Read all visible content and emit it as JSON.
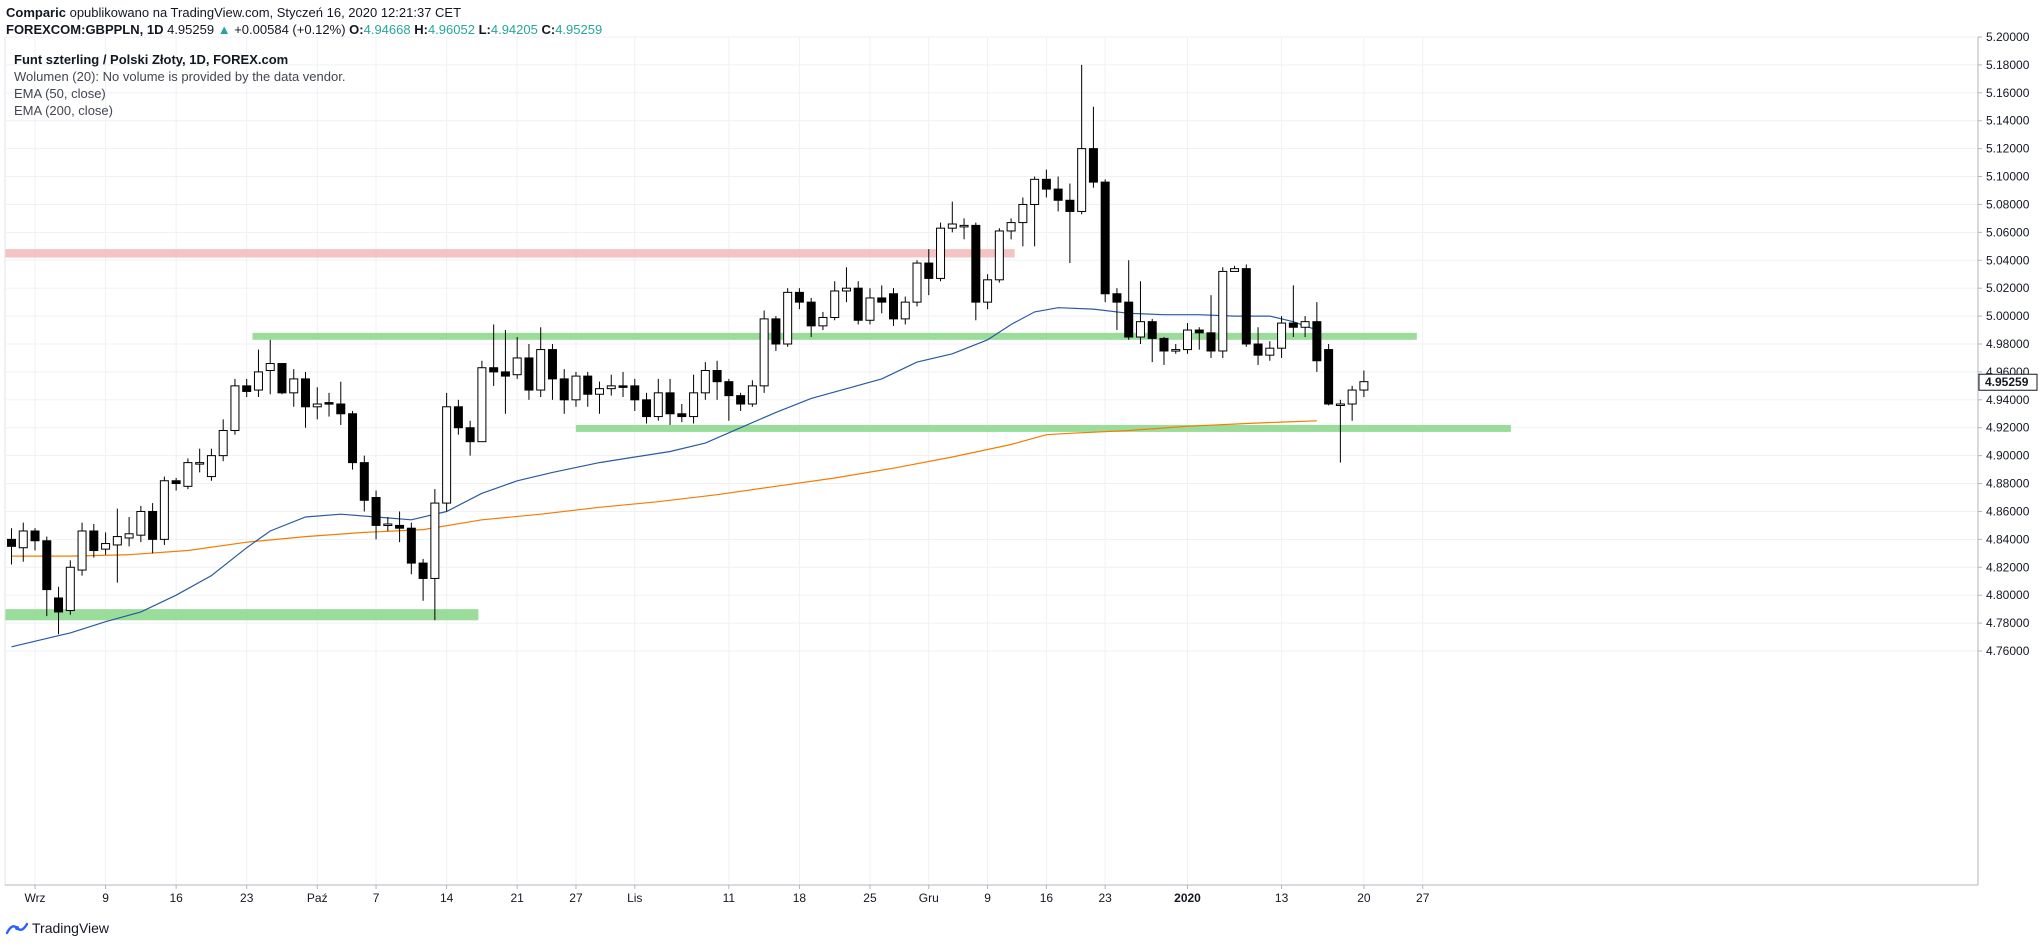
{
  "header": {
    "author": "Comparic",
    "published": "opublikowano na TradingView.com, Styczeń 16, 2020 12:21:37 CET",
    "symbol": "FOREXCOM:GBPPLN, 1D",
    "last": "4.95259",
    "change_arrow": "▲",
    "change": "+0.00584 (+0.12%)",
    "o_label": "O:",
    "o_value": "4.94668",
    "h_label": "H:",
    "h_value": "4.96052",
    "l_label": "L:",
    "l_value": "4.94205",
    "c_label": "C:",
    "c_value": "4.95259"
  },
  "legend": {
    "title": "Funt szterling / Polski Złoty, 1D, FOREX.com",
    "volume": "Wolumen (20): No volume is provided by the data vendor.",
    "ema50": "EMA (50, close)",
    "ema200": "EMA (200, close)"
  },
  "footer": {
    "brand": "TradingView"
  },
  "colors": {
    "ema50": "#2c5aa0",
    "ema200": "#f57c00",
    "resistance_zone": "#f4bcbc",
    "support_zone": "#8fd98f",
    "up_candle": "#ffffff",
    "down_candle": "#000000",
    "last_price_label": "#131722"
  },
  "chart_data": {
    "type": "candlestick",
    "title": "Funt szterling / Polski Złoty, 1D, FOREX.com",
    "ylim": [
      4.75,
      5.2
    ],
    "y_ticks": [
      4.76,
      4.78,
      4.8,
      4.82,
      4.84,
      4.86,
      4.88,
      4.9,
      4.92,
      4.94,
      4.96,
      4.98,
      5.0,
      5.02,
      5.04,
      5.06,
      5.08,
      5.1,
      5.12,
      5.14,
      5.16,
      5.18,
      5.2
    ],
    "x_ticks": [
      {
        "i": 2,
        "label": "Wrz"
      },
      {
        "i": 8,
        "label": "9"
      },
      {
        "i": 14,
        "label": "16"
      },
      {
        "i": 20,
        "label": "23"
      },
      {
        "i": 26,
        "label": "Paź"
      },
      {
        "i": 31,
        "label": "7"
      },
      {
        "i": 37,
        "label": "14"
      },
      {
        "i": 43,
        "label": "21"
      },
      {
        "i": 48,
        "label": "27"
      },
      {
        "i": 53,
        "label": "Lis"
      },
      {
        "i": 61,
        "label": "11"
      },
      {
        "i": 67,
        "label": "18"
      },
      {
        "i": 73,
        "label": "25"
      },
      {
        "i": 78,
        "label": "Gru"
      },
      {
        "i": 83,
        "label": "9"
      },
      {
        "i": 88,
        "label": "16"
      },
      {
        "i": 93,
        "label": "23"
      },
      {
        "i": 100,
        "label": "2020"
      },
      {
        "i": 108,
        "label": "13"
      },
      {
        "i": 115,
        "label": "20"
      },
      {
        "i": 120,
        "label": "27"
      }
    ],
    "last_price": 4.95259,
    "candles": [
      [
        4.84,
        4.835,
        4.848,
        4.822
      ],
      [
        4.834,
        4.846,
        4.852,
        4.824
      ],
      [
        4.846,
        4.839,
        4.848,
        4.832
      ],
      [
        4.839,
        4.804,
        4.842,
        4.785
      ],
      [
        4.798,
        4.788,
        4.806,
        4.772
      ],
      [
        4.789,
        4.82,
        4.825,
        4.786
      ],
      [
        4.818,
        4.846,
        4.852,
        4.814
      ],
      [
        4.846,
        4.832,
        4.851,
        4.827
      ],
      [
        4.833,
        4.837,
        4.845,
        4.829
      ],
      [
        4.836,
        4.842,
        4.862,
        4.809
      ],
      [
        4.841,
        4.844,
        4.856,
        4.835
      ],
      [
        4.843,
        4.86,
        4.864,
        4.838
      ],
      [
        4.86,
        4.84,
        4.866,
        4.83
      ],
      [
        4.84,
        4.882,
        4.885,
        4.836
      ],
      [
        4.882,
        4.88,
        4.884,
        4.875
      ],
      [
        4.878,
        4.895,
        4.898,
        4.876
      ],
      [
        4.895,
        4.895,
        4.905,
        4.888
      ],
      [
        4.885,
        4.9,
        4.905,
        4.882
      ],
      [
        4.9,
        4.918,
        4.926,
        4.896
      ],
      [
        4.918,
        4.95,
        4.955,
        4.915
      ],
      [
        4.95,
        4.946,
        4.955,
        4.942
      ],
      [
        4.947,
        4.96,
        4.976,
        4.942
      ],
      [
        4.961,
        4.966,
        4.983,
        4.944
      ],
      [
        4.966,
        4.945,
        4.966,
        4.944
      ],
      [
        4.945,
        4.955,
        4.962,
        4.935
      ],
      [
        4.955,
        4.935,
        4.96,
        4.92
      ],
      [
        4.935,
        4.937,
        4.949,
        4.926
      ],
      [
        4.938,
        4.937,
        4.945,
        4.928
      ],
      [
        4.937,
        4.93,
        4.953,
        4.922
      ],
      [
        4.93,
        4.895,
        4.932,
        4.89
      ],
      [
        4.895,
        4.868,
        4.9,
        4.86
      ],
      [
        4.87,
        4.85,
        4.875,
        4.84
      ],
      [
        4.85,
        4.851,
        4.856,
        4.846
      ],
      [
        4.85,
        4.848,
        4.86,
        4.838
      ],
      [
        4.848,
        4.823,
        4.852,
        4.815
      ],
      [
        4.823,
        4.812,
        4.826,
        4.796
      ],
      [
        4.812,
        4.866,
        4.876,
        4.782
      ],
      [
        4.866,
        4.935,
        4.945,
        4.86
      ],
      [
        4.935,
        4.92,
        4.94,
        4.915
      ],
      [
        4.92,
        4.91,
        4.925,
        4.9
      ],
      [
        4.91,
        4.963,
        4.968,
        4.91
      ],
      [
        4.963,
        4.96,
        4.994,
        4.95
      ],
      [
        4.96,
        4.957,
        4.99,
        4.93
      ],
      [
        4.958,
        4.97,
        4.985,
        4.955
      ],
      [
        4.97,
        4.947,
        4.98,
        4.94
      ],
      [
        4.947,
        4.976,
        4.992,
        4.942
      ],
      [
        4.976,
        4.955,
        4.98,
        4.94
      ],
      [
        4.955,
        4.94,
        4.962,
        4.93
      ],
      [
        4.94,
        4.957,
        4.96,
        4.935
      ],
      [
        4.957,
        4.944,
        4.96,
        4.935
      ],
      [
        4.944,
        4.948,
        4.953,
        4.93
      ],
      [
        4.948,
        4.95,
        4.958,
        4.943
      ],
      [
        4.95,
        4.949,
        4.96,
        4.942
      ],
      [
        4.95,
        4.94,
        4.955,
        4.932
      ],
      [
        4.94,
        4.928,
        4.945,
        4.923
      ],
      [
        4.928,
        4.945,
        4.955,
        4.925
      ],
      [
        4.945,
        4.93,
        4.955,
        4.922
      ],
      [
        4.93,
        4.928,
        4.937,
        4.924
      ],
      [
        4.928,
        4.945,
        4.958,
        4.923
      ],
      [
        4.945,
        4.961,
        4.967,
        4.94
      ],
      [
        4.961,
        4.953,
        4.968,
        4.94
      ],
      [
        4.953,
        4.943,
        4.955,
        4.925
      ],
      [
        4.943,
        4.937,
        4.945,
        4.932
      ],
      [
        4.937,
        4.95,
        4.954,
        4.935
      ],
      [
        4.95,
        4.998,
        5.004,
        4.945
      ],
      [
        4.998,
        4.98,
        5.0,
        4.975
      ],
      [
        4.98,
        5.017,
        5.02,
        4.978
      ],
      [
        5.017,
        5.01,
        5.02,
        5.005
      ],
      [
        5.01,
        4.993,
        5.013,
        4.985
      ],
      [
        4.993,
        4.999,
        5.003,
        4.99
      ],
      [
        4.999,
        5.018,
        5.025,
        4.997
      ],
      [
        5.018,
        5.02,
        5.035,
        5.01
      ],
      [
        5.02,
        4.997,
        5.025,
        4.994
      ],
      [
        4.997,
        5.013,
        5.02,
        4.994
      ],
      [
        5.013,
        5.01,
        5.022,
        5.002
      ],
      [
        5.016,
        4.998,
        5.02,
        4.993
      ],
      [
        4.998,
        5.01,
        5.014,
        4.994
      ],
      [
        5.01,
        5.038,
        5.04,
        5.007
      ],
      [
        5.038,
        5.027,
        5.048,
        5.015
      ],
      [
        5.027,
        5.063,
        5.067,
        5.025
      ],
      [
        5.063,
        5.066,
        5.082,
        5.06
      ],
      [
        5.064,
        5.065,
        5.07,
        5.055
      ],
      [
        5.065,
        5.01,
        5.067,
        4.997
      ],
      [
        5.01,
        5.026,
        5.03,
        5.005
      ],
      [
        5.026,
        5.061,
        5.063,
        5.024
      ],
      [
        5.061,
        5.067,
        5.07,
        5.055
      ],
      [
        5.067,
        5.08,
        5.085,
        5.05
      ],
      [
        5.08,
        5.098,
        5.1,
        5.05
      ],
      [
        5.098,
        5.091,
        5.105,
        5.085
      ],
      [
        5.091,
        5.083,
        5.1,
        5.075
      ],
      [
        5.083,
        5.075,
        5.095,
        5.038
      ],
      [
        5.075,
        5.12,
        5.18,
        5.073
      ],
      [
        5.12,
        5.096,
        5.15,
        5.092
      ],
      [
        5.096,
        5.016,
        5.098,
        5.01
      ],
      [
        5.016,
        5.01,
        5.02,
        4.99
      ],
      [
        5.01,
        4.985,
        5.04,
        4.983
      ],
      [
        4.985,
        4.996,
        5.025,
        4.98
      ],
      [
        4.996,
        4.984,
        4.998,
        4.967
      ],
      [
        4.984,
        4.975,
        4.985,
        4.965
      ],
      [
        4.975,
        4.976,
        4.98,
        4.973
      ],
      [
        4.976,
        4.99,
        4.995,
        4.973
      ],
      [
        4.99,
        4.988,
        4.992,
        4.976
      ],
      [
        4.988,
        4.975,
        5.015,
        4.97
      ],
      [
        4.975,
        5.032,
        5.035,
        4.97
      ],
      [
        5.032,
        5.034,
        5.036,
        5.032
      ],
      [
        5.034,
        4.98,
        5.037,
        4.978
      ],
      [
        4.98,
        4.972,
        4.992,
        4.965
      ],
      [
        4.972,
        4.977,
        4.982,
        4.968
      ],
      [
        4.977,
        4.995,
        5.0,
        4.97
      ],
      [
        4.995,
        4.992,
        5.022,
        4.985
      ],
      [
        4.992,
        4.996,
        5.0,
        4.985
      ],
      [
        4.996,
        4.968,
        5.01,
        4.96
      ],
      [
        4.976,
        4.937,
        4.98,
        4.936
      ],
      [
        4.937,
        4.937,
        4.94,
        4.895
      ],
      [
        4.937,
        4.947,
        4.95,
        4.925
      ],
      [
        4.947,
        4.953,
        4.961,
        4.942
      ]
    ],
    "ema50": [
      [
        0,
        4.763
      ],
      [
        3,
        4.769
      ],
      [
        5,
        4.773
      ],
      [
        8,
        4.781
      ],
      [
        11,
        4.788
      ],
      [
        14,
        4.8
      ],
      [
        17,
        4.814
      ],
      [
        20,
        4.834
      ],
      [
        22,
        4.846
      ],
      [
        25,
        4.856
      ],
      [
        28,
        4.858
      ],
      [
        31,
        4.856
      ],
      [
        34,
        4.854
      ],
      [
        37,
        4.86
      ],
      [
        40,
        4.873
      ],
      [
        43,
        4.882
      ],
      [
        46,
        4.888
      ],
      [
        50,
        4.895
      ],
      [
        53,
        4.899
      ],
      [
        56,
        4.903
      ],
      [
        59,
        4.909
      ],
      [
        62,
        4.92
      ],
      [
        65,
        4.931
      ],
      [
        68,
        4.941
      ],
      [
        71,
        4.948
      ],
      [
        74,
        4.955
      ],
      [
        77,
        4.967
      ],
      [
        80,
        4.973
      ],
      [
        83,
        4.983
      ],
      [
        85,
        4.994
      ],
      [
        87,
        5.003
      ],
      [
        89,
        5.006
      ],
      [
        92,
        5.005
      ],
      [
        95,
        5.002
      ],
      [
        98,
        5.001
      ],
      [
        101,
        5.001
      ],
      [
        104,
        5.0
      ],
      [
        107,
        5.0
      ],
      [
        109,
        4.996
      ],
      [
        111,
        4.99
      ]
    ],
    "ema200": [
      [
        0,
        4.828
      ],
      [
        5,
        4.828
      ],
      [
        10,
        4.829
      ],
      [
        15,
        4.832
      ],
      [
        20,
        4.838
      ],
      [
        25,
        4.842
      ],
      [
        30,
        4.845
      ],
      [
        35,
        4.847
      ],
      [
        40,
        4.854
      ],
      [
        45,
        4.858
      ],
      [
        50,
        4.863
      ],
      [
        55,
        4.867
      ],
      [
        60,
        4.872
      ],
      [
        65,
        4.878
      ],
      [
        70,
        4.884
      ],
      [
        75,
        4.891
      ],
      [
        80,
        4.899
      ],
      [
        85,
        4.908
      ],
      [
        88,
        4.915
      ],
      [
        90,
        4.916
      ],
      [
        95,
        4.918
      ],
      [
        100,
        4.921
      ],
      [
        105,
        4.923
      ],
      [
        108,
        4.924
      ],
      [
        111,
        4.925
      ]
    ],
    "zones": [
      {
        "kind": "resistance",
        "from": 0,
        "to": 85.3,
        "low": 5.042,
        "high": 5.048
      },
      {
        "kind": "support",
        "from": 21,
        "to": 119.5,
        "low": 4.983,
        "high": 4.988
      },
      {
        "kind": "support",
        "from": 0,
        "to": 39.7,
        "low": 4.782,
        "high": 4.79
      },
      {
        "kind": "support",
        "from": 48.5,
        "to": 127.5,
        "low": 4.917,
        "high": 4.922
      }
    ]
  }
}
